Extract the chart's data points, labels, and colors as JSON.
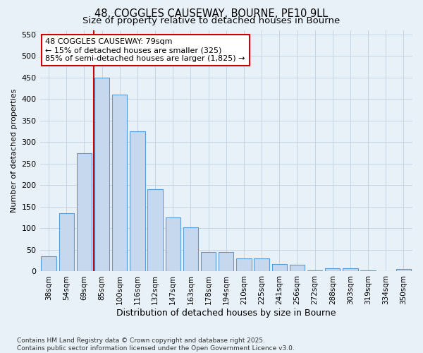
{
  "title": "48, COGGLES CAUSEWAY, BOURNE, PE10 9LL",
  "subtitle": "Size of property relative to detached houses in Bourne",
  "xlabel": "Distribution of detached houses by size in Bourne",
  "ylabel": "Number of detached properties",
  "categories": [
    "38sqm",
    "54sqm",
    "69sqm",
    "85sqm",
    "100sqm",
    "116sqm",
    "132sqm",
    "147sqm",
    "163sqm",
    "178sqm",
    "194sqm",
    "210sqm",
    "225sqm",
    "241sqm",
    "256sqm",
    "272sqm",
    "288sqm",
    "303sqm",
    "319sqm",
    "334sqm",
    "350sqm"
  ],
  "values": [
    35,
    135,
    275,
    450,
    410,
    325,
    190,
    125,
    102,
    45,
    45,
    30,
    30,
    17,
    16,
    3,
    7,
    7,
    2,
    0,
    5
  ],
  "bar_color": "#c5d8ee",
  "bar_edge_color": "#5b9bd5",
  "vline_x_index": 2.55,
  "vline_color": "#cc0000",
  "annotation_text": "48 COGGLES CAUSEWAY: 79sqm\n← 15% of detached houses are smaller (325)\n85% of semi-detached houses are larger (1,825) →",
  "annotation_box_color": "white",
  "annotation_box_edge_color": "#cc0000",
  "ylim": [
    0,
    560
  ],
  "yticks": [
    0,
    50,
    100,
    150,
    200,
    250,
    300,
    350,
    400,
    450,
    500,
    550
  ],
  "grid_color": "#c0d0e0",
  "background_color": "#e8f0f8",
  "footnote": "Contains HM Land Registry data © Crown copyright and database right 2025.\nContains public sector information licensed under the Open Government Licence v3.0.",
  "title_fontsize": 10.5,
  "subtitle_fontsize": 9.5,
  "xlabel_fontsize": 9,
  "ylabel_fontsize": 8,
  "tick_fontsize": 7.5,
  "annot_fontsize": 8,
  "footnote_fontsize": 6.5
}
